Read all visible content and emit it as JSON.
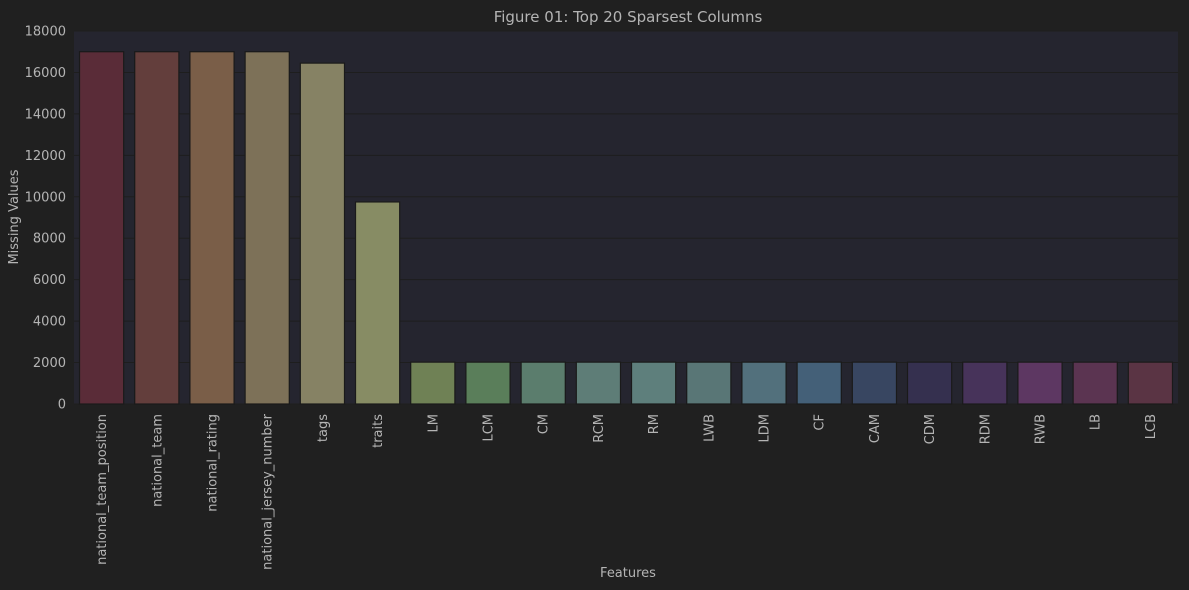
{
  "chart_data": {
    "type": "bar",
    "title": "Figure 01: Top 20 Sparsest Columns",
    "xlabel": "Features",
    "ylabel": "Missing Values",
    "ylim": [
      0,
      18000
    ],
    "yticks": [
      0,
      2000,
      4000,
      6000,
      8000,
      10000,
      12000,
      14000,
      16000,
      18000
    ],
    "grid": true,
    "categories": [
      "national_team_position",
      "national_team",
      "national_rating",
      "national_jersey_number",
      "tags",
      "traits",
      "LM",
      "LCM",
      "CM",
      "RCM",
      "RM",
      "LWB",
      "LDM",
      "CF",
      "CAM",
      "CDM",
      "RDM",
      "RWB",
      "LB",
      "LCB"
    ],
    "values": [
      17000,
      17000,
      17000,
      17000,
      16450,
      9750,
      2020,
      2020,
      2020,
      2020,
      2020,
      2020,
      2020,
      2020,
      2020,
      2020,
      2020,
      2020,
      2020,
      2020
    ],
    "colors": [
      "#5a2c38",
      "#633e3c",
      "#7a5e48",
      "#7d7158",
      "#868264",
      "#878c64",
      "#6f8155",
      "#5a7e5a",
      "#5b7d6d",
      "#5e7d77",
      "#5e7f7c",
      "#597676",
      "#52707c",
      "#446078",
      "#384661",
      "#35304f",
      "#47335a",
      "#5d3762",
      "#5b3451",
      "#5a3444"
    ],
    "background": "#202020",
    "plot_background": "#25252f",
    "grid_color": "#1e1e1e",
    "text_color": "#b4b4b4"
  }
}
